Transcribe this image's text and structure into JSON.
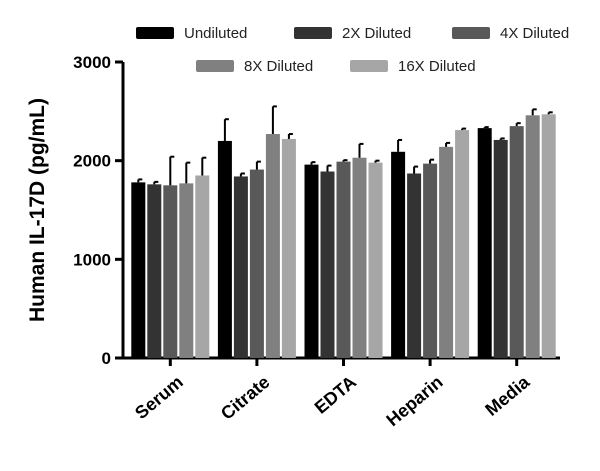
{
  "chart_data": {
    "type": "bar",
    "title": "",
    "xlabel": "",
    "ylabel": "Human IL-17D (pg/mL)",
    "ylim": [
      0,
      3000
    ],
    "yticks": [
      0,
      1000,
      2000,
      3000
    ],
    "grid": false,
    "legend_position": "top",
    "categories": [
      "Serum",
      "Citrate",
      "EDTA",
      "Heparin",
      "Media"
    ],
    "series": [
      {
        "name": "Undiluted",
        "color": "#000000",
        "values": [
          1780,
          2200,
          1960,
          2090,
          2330
        ],
        "errors": [
          30,
          220,
          25,
          120,
          10
        ]
      },
      {
        "name": "2X Diluted",
        "color": "#333333",
        "values": [
          1760,
          1840,
          1890,
          1870,
          2210
        ],
        "errors": [
          25,
          30,
          60,
          70,
          15
        ]
      },
      {
        "name": "4X Diluted",
        "color": "#595959",
        "values": [
          1750,
          1910,
          1990,
          1970,
          2350
        ],
        "errors": [
          290,
          80,
          15,
          40,
          30
        ]
      },
      {
        "name": "8X Diluted",
        "color": "#808080",
        "values": [
          1770,
          2270,
          2030,
          2140,
          2460
        ],
        "errors": [
          210,
          280,
          140,
          40,
          60
        ]
      },
      {
        "name": "16X Diluted",
        "color": "#a6a6a6",
        "values": [
          1850,
          2220,
          1980,
          2310,
          2470
        ],
        "errors": [
          180,
          50,
          20,
          15,
          20
        ]
      }
    ]
  }
}
